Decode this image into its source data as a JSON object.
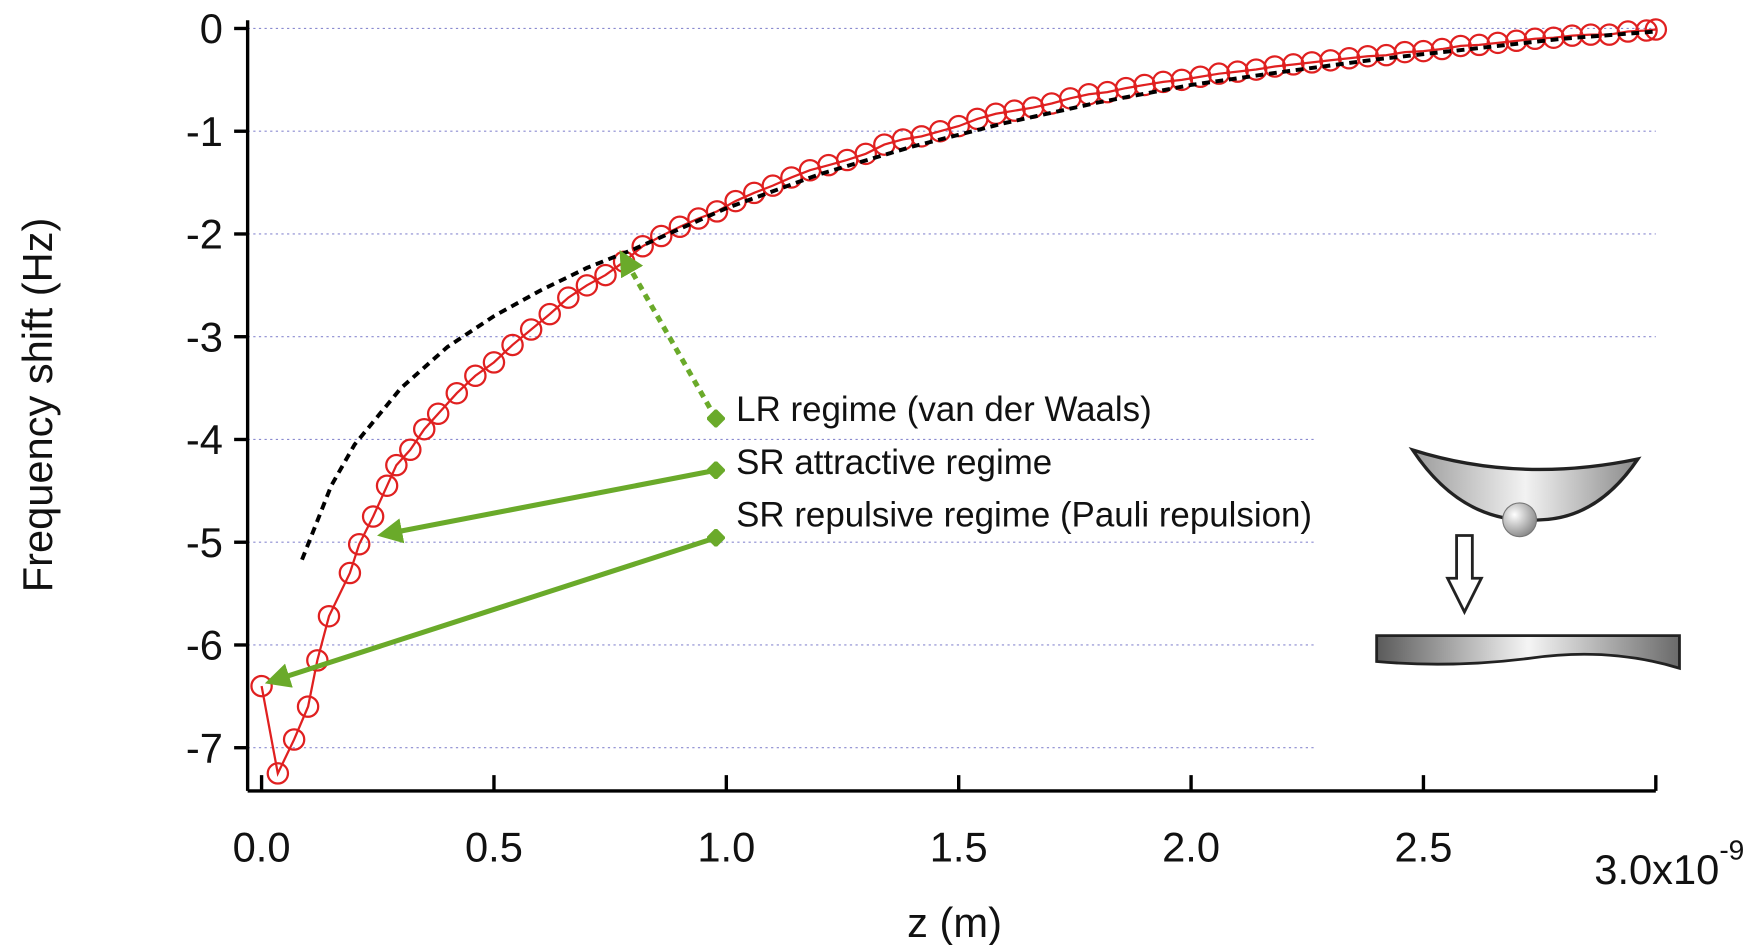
{
  "chart_data": {
    "type": "scatter-line",
    "x_label": "z (m)",
    "y_label": "Frequency shift (Hz)",
    "xlim": [
      -0.03,
      3.0
    ],
    "ylim": [
      -7.42,
      0.08
    ],
    "xticks": [
      {
        "value": 0,
        "label": "0.0"
      },
      {
        "value": 0.5,
        "label": "0.5"
      },
      {
        "value": 1,
        "label": "1.0"
      },
      {
        "value": 1.5,
        "label": "1.5"
      },
      {
        "value": 2,
        "label": "2.0"
      },
      {
        "value": 2.5,
        "label": "2.5"
      },
      {
        "value": 3,
        "label": "3.0x10",
        "exponent": "-9"
      }
    ],
    "yticks": [
      0,
      -1,
      -2,
      -3,
      -4,
      -5,
      -6,
      -7
    ],
    "grid": true,
    "series": [
      {
        "color": "#e02020",
        "marker": "circle",
        "x": [
          0.0,
          0.035,
          0.07,
          0.1,
          0.12,
          0.145,
          0.19,
          0.21,
          0.24,
          0.27,
          0.29,
          0.32,
          0.35,
          0.38,
          0.42,
          0.46,
          0.5,
          0.54,
          0.58,
          0.62,
          0.66,
          0.7,
          0.74,
          0.78,
          0.82,
          0.86,
          0.9,
          0.94,
          0.98,
          1.02,
          1.06,
          1.1,
          1.14,
          1.18,
          1.22,
          1.26,
          1.3,
          1.34,
          1.38,
          1.42,
          1.46,
          1.5,
          1.54,
          1.58,
          1.62,
          1.66,
          1.7,
          1.74,
          1.78,
          1.82,
          1.86,
          1.9,
          1.94,
          1.98,
          2.02,
          2.06,
          2.1,
          2.14,
          2.18,
          2.22,
          2.26,
          2.3,
          2.34,
          2.38,
          2.42,
          2.46,
          2.5,
          2.54,
          2.58,
          2.62,
          2.66,
          2.7,
          2.74,
          2.78,
          2.82,
          2.86,
          2.9,
          2.94,
          2.98,
          3.0
        ],
        "values": [
          -6.4,
          -7.25,
          -6.92,
          -6.6,
          -6.15,
          -5.72,
          -5.3,
          -5.02,
          -4.75,
          -4.45,
          -4.25,
          -4.1,
          -3.9,
          -3.75,
          -3.55,
          -3.38,
          -3.25,
          -3.08,
          -2.93,
          -2.78,
          -2.62,
          -2.5,
          -2.4,
          -2.27,
          -2.12,
          -2.02,
          -1.93,
          -1.85,
          -1.78,
          -1.68,
          -1.6,
          -1.53,
          -1.45,
          -1.38,
          -1.33,
          -1.28,
          -1.22,
          -1.13,
          -1.08,
          -1.05,
          -1.0,
          -0.95,
          -0.88,
          -0.83,
          -0.8,
          -0.77,
          -0.73,
          -0.68,
          -0.64,
          -0.62,
          -0.58,
          -0.55,
          -0.52,
          -0.5,
          -0.47,
          -0.44,
          -0.42,
          -0.4,
          -0.37,
          -0.35,
          -0.33,
          -0.31,
          -0.29,
          -0.27,
          -0.26,
          -0.23,
          -0.22,
          -0.2,
          -0.17,
          -0.16,
          -0.14,
          -0.12,
          -0.1,
          -0.09,
          -0.07,
          -0.06,
          -0.06,
          -0.03,
          -0.02,
          -0.01
        ]
      },
      {
        "color": "#000000",
        "dashed": true,
        "x": [
          0.087,
          0.15,
          0.2,
          0.3,
          0.4,
          0.5,
          0.6,
          0.7,
          0.8,
          1.0,
          1.2,
          1.4,
          1.6,
          1.8,
          2.0,
          2.2,
          2.4,
          2.6,
          2.8,
          3.0
        ],
        "values": [
          -5.17,
          -4.45,
          -4.05,
          -3.5,
          -3.1,
          -2.8,
          -2.55,
          -2.33,
          -2.15,
          -1.75,
          -1.42,
          -1.15,
          -0.92,
          -0.72,
          -0.55,
          -0.42,
          -0.3,
          -0.2,
          -0.1,
          -0.03
        ]
      }
    ],
    "annotations": [
      "LR regime (van der Waals)",
      "SR attractive regime",
      "SR repulsive regime (Pauli repulsion)"
    ]
  }
}
